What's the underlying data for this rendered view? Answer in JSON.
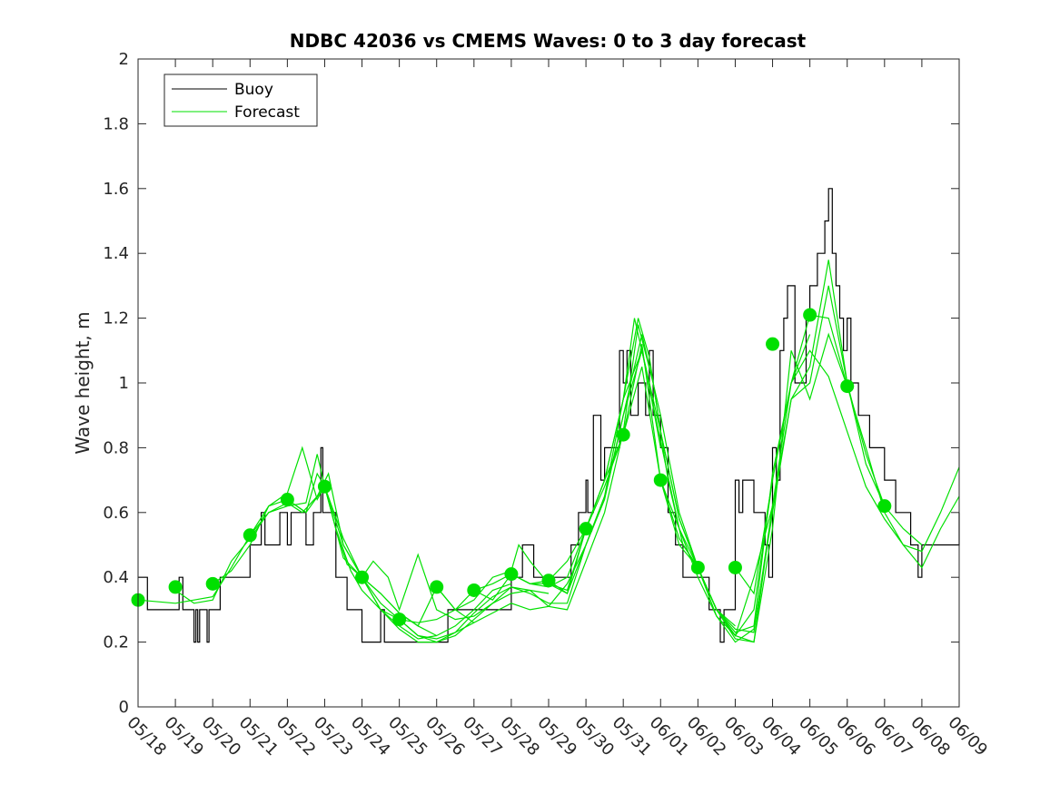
{
  "chart_data": {
    "type": "line",
    "title": "NDBC 42036 vs CMEMS Waves: 0 to 3 day forecast",
    "ylabel": "Wave height, m",
    "xlabel": "",
    "ylim": [
      0,
      2
    ],
    "yticks": [
      0,
      0.2,
      0.4,
      0.6,
      0.8,
      1,
      1.2,
      1.4,
      1.6,
      1.8,
      2
    ],
    "ytick_labels": [
      "0",
      "0.2",
      "0.4",
      "0.6",
      "0.8",
      "1",
      "1.2",
      "1.4",
      "1.6",
      "1.8",
      "2"
    ],
    "xlim": [
      0,
      22
    ],
    "xticks": [
      0,
      1,
      2,
      3,
      4,
      5,
      6,
      7,
      8,
      9,
      10,
      11,
      12,
      13,
      14,
      15,
      16,
      17,
      18,
      19,
      20,
      21,
      22
    ],
    "xtick_labels": [
      "05/18",
      "05/19",
      "05/20",
      "05/21",
      "05/22",
      "05/23",
      "05/24",
      "05/25",
      "05/26",
      "05/27",
      "05/28",
      "05/29",
      "05/30",
      "05/31",
      "06/01",
      "06/02",
      "06/03",
      "06/04",
      "06/05",
      "06/06",
      "06/07",
      "06/08",
      "06/09"
    ],
    "grid": false,
    "legend_position": "top-left",
    "legend": [
      {
        "label": "Buoy",
        "color": "#000000"
      },
      {
        "label": "Forecast",
        "color": "#00e000"
      }
    ],
    "series": [
      {
        "name": "Buoy",
        "color": "#000000",
        "step": true,
        "x": [
          0,
          0.25,
          0.5,
          1.0,
          1.1,
          1.2,
          1.5,
          1.5,
          1.55,
          1.6,
          1.65,
          1.8,
          1.85,
          1.9,
          2.1,
          2.2,
          2.5,
          3.0,
          3.3,
          3.4,
          3.6,
          3.8,
          4.0,
          4.1,
          4.3,
          4.5,
          4.7,
          4.9,
          4.95,
          5.0,
          5.3,
          5.6,
          5.7,
          6.0,
          6.4,
          6.5,
          6.6,
          7.0,
          8.0,
          8.3,
          9.0,
          9.5,
          10.0,
          10.3,
          10.6,
          11.0,
          11.5,
          11.6,
          11.8,
          12.0,
          12.05,
          12.2,
          12.4,
          12.5,
          12.8,
          12.9,
          13.0,
          13.1,
          13.2,
          13.4,
          13.5,
          13.6,
          13.7,
          13.8,
          14.0,
          14.2,
          14.4,
          14.6,
          14.8,
          15.0,
          15.3,
          15.5,
          15.6,
          15.7,
          15.9,
          16.0,
          16.1,
          16.2,
          16.5,
          16.7,
          16.8,
          16.9,
          17.0,
          17.1,
          17.2,
          17.3,
          17.4,
          17.6,
          17.8,
          17.9,
          18.0,
          18.2,
          18.4,
          18.5,
          18.6,
          18.7,
          18.8,
          18.9,
          19.0,
          19.1,
          19.3,
          19.5,
          19.6,
          19.8,
          20.0,
          20.3,
          20.5,
          20.7,
          20.8,
          20.9,
          21.0,
          21.5,
          22.0
        ],
        "y": [
          0.4,
          0.3,
          0.3,
          0.3,
          0.4,
          0.3,
          0.3,
          0.2,
          0.3,
          0.2,
          0.3,
          0.3,
          0.2,
          0.3,
          0.3,
          0.4,
          0.4,
          0.5,
          0.6,
          0.5,
          0.5,
          0.6,
          0.5,
          0.6,
          0.6,
          0.5,
          0.6,
          0.8,
          0.6,
          0.6,
          0.4,
          0.3,
          0.3,
          0.2,
          0.2,
          0.3,
          0.2,
          0.2,
          0.2,
          0.3,
          0.3,
          0.3,
          0.4,
          0.5,
          0.4,
          0.4,
          0.4,
          0.5,
          0.6,
          0.7,
          0.6,
          0.9,
          0.7,
          0.8,
          0.8,
          1.1,
          1.0,
          1.1,
          0.9,
          1.0,
          1.0,
          0.9,
          1.1,
          0.9,
          0.8,
          0.6,
          0.5,
          0.4,
          0.4,
          0.4,
          0.3,
          0.3,
          0.2,
          0.3,
          0.3,
          0.7,
          0.6,
          0.7,
          0.6,
          0.6,
          0.5,
          0.4,
          0.8,
          0.7,
          1.1,
          1.2,
          1.3,
          1.0,
          1.0,
          1.2,
          1.3,
          1.4,
          1.5,
          1.6,
          1.4,
          1.3,
          1.2,
          1.1,
          1.2,
          1.0,
          0.9,
          0.9,
          0.8,
          0.8,
          0.7,
          0.6,
          0.6,
          0.5,
          0.5,
          0.4,
          0.5,
          0.5,
          0.6
        ]
      },
      {
        "name": "",
        "color": "#00e000",
        "x": [
          0,
          1,
          2,
          2.5,
          3,
          3.5,
          4,
          4.4,
          4.8,
          5.0,
          5.3,
          5.7,
          6,
          6.5,
          7,
          7.5,
          8
        ],
        "y": [
          0.33,
          0.32,
          0.34,
          0.43,
          0.53,
          0.62,
          0.66,
          0.8,
          0.64,
          0.68,
          0.55,
          0.42,
          0.36,
          0.3,
          0.25,
          0.21,
          0.22
        ]
      },
      {
        "name": "",
        "color": "#00e000",
        "x": [
          1,
          1.5,
          2,
          2.5,
          3,
          3.5,
          4,
          4.4,
          4.8,
          5.1,
          5.5,
          6,
          6.5,
          7,
          7.5,
          8,
          8.5,
          9
        ],
        "y": [
          0.36,
          0.32,
          0.33,
          0.45,
          0.52,
          0.6,
          0.63,
          0.6,
          0.65,
          0.72,
          0.5,
          0.4,
          0.32,
          0.27,
          0.22,
          0.21,
          0.23,
          0.26
        ]
      },
      {
        "name": "",
        "color": "#00e000",
        "x": [
          2,
          2.5,
          3,
          3.5,
          4,
          4.5,
          4.8,
          5.0,
          5.3,
          5.6,
          6,
          6.5,
          7,
          7.5,
          8,
          8.5,
          9,
          9.5,
          10
        ],
        "y": [
          0.38,
          0.42,
          0.5,
          0.62,
          0.64,
          0.6,
          0.72,
          0.68,
          0.55,
          0.44,
          0.4,
          0.35,
          0.29,
          0.25,
          0.22,
          0.25,
          0.3,
          0.36,
          0.38
        ]
      },
      {
        "name": "",
        "color": "#00e000",
        "x": [
          3,
          3.5,
          4,
          4.5,
          4.8,
          5.0,
          5.5,
          6,
          6.3,
          6.7,
          7,
          7.5,
          8,
          8.5,
          9,
          9.5,
          10,
          10.5,
          11
        ],
        "y": [
          0.53,
          0.6,
          0.62,
          0.63,
          0.78,
          0.68,
          0.46,
          0.4,
          0.45,
          0.4,
          0.3,
          0.47,
          0.3,
          0.27,
          0.28,
          0.32,
          0.37,
          0.36,
          0.35
        ]
      },
      {
        "name": "",
        "color": "#00e000",
        "x": [
          4,
          4.5,
          5,
          5.5,
          6,
          6.5,
          7,
          7.5,
          8,
          8.5,
          9,
          9.5,
          10,
          10.2,
          10.5,
          11,
          11.5,
          12
        ],
        "y": [
          0.64,
          0.6,
          0.68,
          0.5,
          0.4,
          0.35,
          0.29,
          0.25,
          0.37,
          0.3,
          0.33,
          0.4,
          0.42,
          0.5,
          0.45,
          0.38,
          0.36,
          0.55
        ]
      },
      {
        "name": "",
        "color": "#00e000",
        "x": [
          5,
          5.5,
          6,
          6.5,
          7,
          7.5,
          8,
          8.5,
          9,
          9.5,
          10,
          10.5,
          11,
          11.5,
          12,
          12.5,
          13
        ],
        "y": [
          0.68,
          0.52,
          0.4,
          0.3,
          0.27,
          0.26,
          0.27,
          0.3,
          0.36,
          0.38,
          0.41,
          0.38,
          0.39,
          0.35,
          0.55,
          0.7,
          0.84
        ]
      },
      {
        "name": "",
        "color": "#00e000",
        "x": [
          6,
          6.5,
          7,
          7.5,
          8,
          8.5,
          9,
          9.5,
          10,
          10.5,
          11,
          11.5,
          12,
          12.5,
          13,
          13.3,
          13.6,
          14
        ],
        "y": [
          0.4,
          0.3,
          0.24,
          0.2,
          0.2,
          0.23,
          0.29,
          0.34,
          0.37,
          0.35,
          0.32,
          0.32,
          0.5,
          0.65,
          0.95,
          1.2,
          1.05,
          0.8
        ]
      },
      {
        "name": "",
        "color": "#00e000",
        "x": [
          7,
          7.5,
          8,
          8.5,
          9,
          9.5,
          10,
          10.5,
          11,
          11.5,
          12,
          12.5,
          13,
          13.4,
          13.8,
          14.2,
          14.6,
          15
        ],
        "y": [
          0.27,
          0.22,
          0.2,
          0.22,
          0.27,
          0.32,
          0.35,
          0.36,
          0.31,
          0.3,
          0.45,
          0.6,
          0.85,
          1.18,
          1.0,
          0.7,
          0.5,
          0.43
        ]
      },
      {
        "name": "",
        "color": "#00e000",
        "x": [
          8,
          8.5,
          9,
          9.5,
          10,
          10.5,
          11,
          11.5,
          12,
          12.5,
          13,
          13.5,
          14,
          14.5,
          15,
          15.5,
          16
        ],
        "y": [
          0.37,
          0.3,
          0.26,
          0.29,
          0.32,
          0.3,
          0.31,
          0.38,
          0.5,
          0.64,
          0.9,
          1.15,
          0.9,
          0.6,
          0.43,
          0.3,
          0.25
        ]
      },
      {
        "name": "",
        "color": "#00e000",
        "x": [
          9,
          9.5,
          10,
          10.5,
          11,
          11.5,
          12,
          12.5,
          13,
          13.5,
          14,
          14.5,
          15,
          15.5,
          16,
          16.5,
          17
        ],
        "y": [
          0.36,
          0.33,
          0.41,
          0.38,
          0.37,
          0.4,
          0.55,
          0.7,
          0.95,
          1.1,
          0.85,
          0.58,
          0.43,
          0.3,
          0.22,
          0.3,
          0.7
        ]
      },
      {
        "name": "",
        "color": "#00e000",
        "x": [
          10,
          10.5,
          11,
          11.5,
          12,
          12.5,
          13,
          13.5,
          14,
          14.5,
          15,
          15.5,
          16,
          16.5,
          17
        ],
        "y": [
          0.41,
          0.38,
          0.38,
          0.35,
          0.5,
          0.65,
          0.9,
          1.1,
          0.82,
          0.55,
          0.4,
          0.28,
          0.22,
          0.4,
          0.62
        ]
      },
      {
        "name": "",
        "color": "#00e000",
        "x": [
          11,
          11.5,
          12,
          12.5,
          13,
          13.4,
          13.7,
          14,
          14.5,
          15,
          15.5,
          16,
          16.5,
          17,
          17.5,
          18
        ],
        "y": [
          0.39,
          0.45,
          0.55,
          0.7,
          0.95,
          1.2,
          1.08,
          0.85,
          0.58,
          0.43,
          0.3,
          0.23,
          0.25,
          0.72,
          1.0,
          1.15
        ]
      },
      {
        "name": "",
        "color": "#00e000",
        "x": [
          12,
          12.5,
          13,
          13.5,
          14,
          14.5,
          15,
          15.5,
          16,
          16.5,
          17,
          17.5,
          18,
          18.5,
          19
        ],
        "y": [
          0.55,
          0.68,
          0.84,
          1.12,
          0.7,
          0.52,
          0.43,
          0.3,
          0.24,
          0.23,
          0.62,
          1.0,
          1.21,
          1.2,
          0.99
        ]
      },
      {
        "name": "",
        "color": "#00e000",
        "x": [
          13,
          13.5,
          14,
          14.5,
          15,
          15.5,
          16,
          16.5,
          17,
          17.5,
          18,
          18.5,
          19,
          19.5,
          20
        ],
        "y": [
          0.84,
          1.05,
          0.7,
          0.5,
          0.43,
          0.28,
          0.2,
          0.24,
          0.6,
          0.95,
          1.0,
          1.3,
          1.0,
          0.78,
          0.62
        ]
      },
      {
        "name": "",
        "color": "#00e000",
        "x": [
          14,
          14.5,
          15,
          15.5,
          16,
          16.5,
          17,
          17.5,
          18,
          18.5,
          19,
          19.5,
          20,
          20.5,
          21
        ],
        "y": [
          0.7,
          0.55,
          0.43,
          0.3,
          0.21,
          0.2,
          0.62,
          0.95,
          1.05,
          1.38,
          1.0,
          0.75,
          0.62,
          0.55,
          0.5
        ]
      },
      {
        "name": "",
        "color": "#00e000",
        "x": [
          15,
          15.5,
          16,
          16.5,
          17,
          17.5,
          18,
          18.5,
          19,
          19.5,
          20,
          20.5,
          21,
          21.5,
          22
        ],
        "y": [
          0.43,
          0.3,
          0.22,
          0.2,
          0.55,
          1.1,
          0.95,
          1.15,
          0.99,
          0.8,
          0.6,
          0.5,
          0.43,
          0.55,
          0.65
        ]
      },
      {
        "name": "",
        "color": "#00e000",
        "x": [
          16,
          16.5,
          17,
          17.5,
          18,
          18.5,
          19,
          19.5,
          20,
          20.5,
          21,
          21.5,
          22
        ],
        "y": [
          0.43,
          0.35,
          0.7,
          1.0,
          1.1,
          1.02,
          0.85,
          0.68,
          0.58,
          0.5,
          0.48,
          0.6,
          0.74
        ]
      }
    ],
    "markers": {
      "color": "#00e000",
      "x": [
        0,
        1,
        2,
        3,
        4,
        5,
        6,
        7,
        8,
        9,
        10,
        11,
        12,
        13,
        14,
        15,
        16,
        17,
        18,
        19,
        20
      ],
      "y": [
        0.33,
        0.37,
        0.38,
        0.53,
        0.64,
        0.68,
        0.4,
        0.27,
        0.37,
        0.36,
        0.41,
        0.39,
        0.55,
        0.84,
        0.7,
        0.43,
        0.43,
        1.12,
        1.21,
        0.99,
        0.62
      ]
    }
  }
}
